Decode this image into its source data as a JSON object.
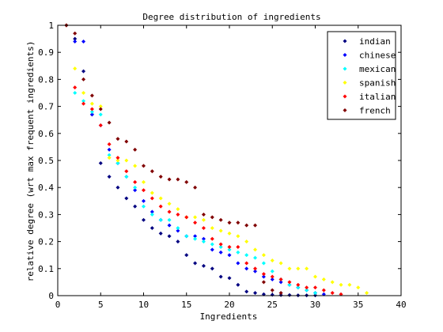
{
  "chart_data": {
    "type": "scatter",
    "title": "Degree distribution of ingredients",
    "xlabel": "Ingredients",
    "ylabel": "relative degree (wrt max frequent ingredients)",
    "xlim": [
      0,
      40
    ],
    "ylim": [
      0,
      1
    ],
    "xticks": [
      0,
      5,
      10,
      15,
      20,
      25,
      30,
      35,
      40
    ],
    "yticks": [
      0,
      0.1,
      0.2,
      0.3,
      0.4,
      0.5,
      0.6,
      0.7,
      0.8,
      0.9,
      1
    ],
    "grid": false,
    "legend_position": "top-right",
    "series": [
      {
        "name": "indian",
        "color": "#000080",
        "x": [
          1,
          2,
          3,
          4,
          5,
          6,
          7,
          8,
          9,
          10,
          11,
          12,
          13,
          14,
          15,
          16,
          17,
          18,
          19,
          20,
          21,
          22,
          23,
          24,
          25,
          26,
          27,
          28,
          29,
          30
        ],
        "y": [
          1.0,
          0.95,
          0.83,
          0.67,
          0.49,
          0.44,
          0.4,
          0.36,
          0.33,
          0.28,
          0.25,
          0.23,
          0.22,
          0.2,
          0.15,
          0.12,
          0.11,
          0.1,
          0.07,
          0.065,
          0.04,
          0.015,
          0.01,
          0.005,
          0.003,
          0.002,
          0.002,
          0.001,
          0.001,
          0.001
        ]
      },
      {
        "name": "chinese",
        "color": "#0000ff",
        "x": [
          1,
          2,
          3,
          4,
          5,
          6,
          7,
          8,
          9,
          10,
          11,
          12,
          13,
          14,
          15,
          16,
          17,
          18,
          19,
          20,
          21,
          22,
          23,
          24,
          25,
          26,
          27,
          28,
          29,
          30,
          31
        ],
        "y": [
          1.0,
          0.94,
          0.94,
          0.67,
          0.63,
          0.54,
          0.49,
          0.44,
          0.39,
          0.35,
          0.31,
          0.28,
          0.26,
          0.24,
          0.22,
          0.22,
          0.21,
          0.17,
          0.16,
          0.15,
          0.12,
          0.1,
          0.09,
          0.07,
          0.06,
          0.05,
          0.04,
          0.03,
          0.02,
          0.01,
          0.005
        ]
      },
      {
        "name": "mexican",
        "color": "#00ffff",
        "x": [
          1,
          2,
          3,
          4,
          5,
          6,
          7,
          8,
          9,
          10,
          11,
          12,
          13,
          14,
          15,
          16,
          17,
          18,
          19,
          20,
          21,
          22,
          23,
          24,
          25,
          26,
          27,
          28,
          29,
          30
        ],
        "y": [
          1.0,
          0.75,
          0.72,
          0.68,
          0.67,
          0.52,
          0.49,
          0.44,
          0.4,
          0.33,
          0.3,
          0.28,
          0.28,
          0.25,
          0.22,
          0.21,
          0.2,
          0.19,
          0.18,
          0.17,
          0.16,
          0.15,
          0.14,
          0.12,
          0.09,
          0.06,
          0.04,
          0.03,
          0.02,
          0.01
        ]
      },
      {
        "name": "spanish",
        "color": "#ffff00",
        "x": [
          1,
          2,
          3,
          4,
          5,
          6,
          7,
          8,
          9,
          10,
          11,
          12,
          13,
          14,
          15,
          16,
          17,
          18,
          19,
          20,
          21,
          22,
          23,
          24,
          25,
          26,
          27,
          28,
          29,
          30,
          31,
          32,
          33,
          34,
          35,
          36
        ],
        "y": [
          1.0,
          0.84,
          0.75,
          0.71,
          0.7,
          0.51,
          0.5,
          0.5,
          0.48,
          0.42,
          0.38,
          0.36,
          0.34,
          0.32,
          0.29,
          0.29,
          0.28,
          0.25,
          0.24,
          0.23,
          0.22,
          0.2,
          0.17,
          0.15,
          0.13,
          0.12,
          0.1,
          0.1,
          0.1,
          0.07,
          0.06,
          0.05,
          0.04,
          0.04,
          0.03,
          0.01
        ]
      },
      {
        "name": "italian",
        "color": "#ff0000",
        "x": [
          1,
          2,
          3,
          4,
          5,
          6,
          7,
          8,
          9,
          10,
          11,
          12,
          13,
          14,
          15,
          16,
          17,
          18,
          19,
          20,
          21,
          22,
          23,
          24,
          25,
          26,
          27,
          28,
          29,
          30,
          31,
          32,
          33
        ],
        "y": [
          1.0,
          0.77,
          0.71,
          0.69,
          0.63,
          0.56,
          0.51,
          0.46,
          0.42,
          0.39,
          0.36,
          0.33,
          0.31,
          0.3,
          0.29,
          0.27,
          0.25,
          0.21,
          0.19,
          0.18,
          0.18,
          0.12,
          0.1,
          0.08,
          0.07,
          0.06,
          0.05,
          0.04,
          0.03,
          0.03,
          0.02,
          0.01,
          0.005
        ]
      },
      {
        "name": "french",
        "color": "#800000",
        "x": [
          1,
          2,
          3,
          4,
          5,
          6,
          7,
          8,
          9,
          10,
          11,
          12,
          13,
          14,
          15,
          16,
          17,
          18,
          19,
          20,
          21,
          22,
          23,
          24,
          25,
          26
        ],
        "y": [
          1.0,
          0.97,
          0.8,
          0.74,
          0.69,
          0.64,
          0.58,
          0.57,
          0.54,
          0.48,
          0.46,
          0.44,
          0.43,
          0.43,
          0.42,
          0.4,
          0.3,
          0.29,
          0.28,
          0.27,
          0.27,
          0.26,
          0.26,
          0.05,
          0.02,
          0.01
        ]
      }
    ]
  }
}
